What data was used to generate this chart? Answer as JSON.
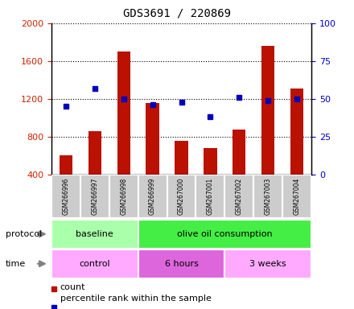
{
  "title": "GDS3691 / 220869",
  "samples": [
    "GSM266996",
    "GSM266997",
    "GSM266998",
    "GSM266999",
    "GSM267000",
    "GSM267001",
    "GSM267002",
    "GSM267003",
    "GSM267004"
  ],
  "counts": [
    600,
    860,
    1700,
    1160,
    760,
    680,
    880,
    1760,
    1310
  ],
  "percentile_ranks": [
    45,
    57,
    50,
    46,
    48,
    38,
    51,
    49,
    50
  ],
  "ylim_left": [
    400,
    2000
  ],
  "ylim_right": [
    0,
    100
  ],
  "yticks_left": [
    400,
    800,
    1200,
    1600,
    2000
  ],
  "yticks_right": [
    0,
    25,
    50,
    75,
    100
  ],
  "bar_color": "#bb1100",
  "dot_color": "#0000bb",
  "protocol_groups": [
    {
      "label": "baseline",
      "start": 0,
      "end": 3,
      "color": "#aaffaa"
    },
    {
      "label": "olive oil consumption",
      "start": 3,
      "end": 9,
      "color": "#44ee44"
    }
  ],
  "time_groups": [
    {
      "label": "control",
      "start": 0,
      "end": 3,
      "color": "#ffaaff"
    },
    {
      "label": "6 hours",
      "start": 3,
      "end": 6,
      "color": "#dd66dd"
    },
    {
      "label": "3 weeks",
      "start": 6,
      "end": 9,
      "color": "#ffaaff"
    }
  ],
  "legend_count_label": "count",
  "legend_pct_label": "percentile rank within the sample",
  "protocol_label": "protocol",
  "time_label": "time",
  "tick_label_color_left": "#cc2200",
  "tick_label_color_right": "#0000cc",
  "background_color": "#ffffff"
}
